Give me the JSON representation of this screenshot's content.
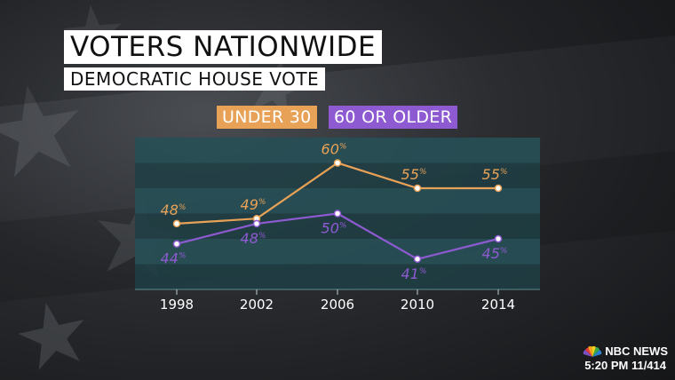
{
  "title": "VOTERS NATIONWIDE",
  "subtitle": "DEMOCRATIC HOUSE VOTE",
  "network": "NBC NEWS",
  "timestamp": "5:20 PM 11/414",
  "chart_data": {
    "type": "line",
    "title": "VOTERS NATIONWIDE",
    "subtitle": "DEMOCRATIC HOUSE VOTE",
    "xlabel": "",
    "ylabel": "",
    "categories": [
      "1998",
      "2002",
      "2006",
      "2010",
      "2014"
    ],
    "ylim": [
      35,
      65
    ],
    "grid": true,
    "legend_position": "top",
    "series": [
      {
        "name": "UNDER 30",
        "color": "#e8a257",
        "values": [
          48,
          49,
          60,
          55,
          55
        ],
        "labels": [
          "48",
          "49",
          "60",
          "55",
          "55"
        ],
        "label_position": "above"
      },
      {
        "name": "60 OR OLDER",
        "color": "#8e5ad1",
        "values": [
          44,
          48,
          50,
          41,
          45
        ],
        "labels": [
          "44",
          "48",
          "50",
          "41",
          "45"
        ],
        "label_position": "below"
      }
    ],
    "label_unit": "%"
  }
}
